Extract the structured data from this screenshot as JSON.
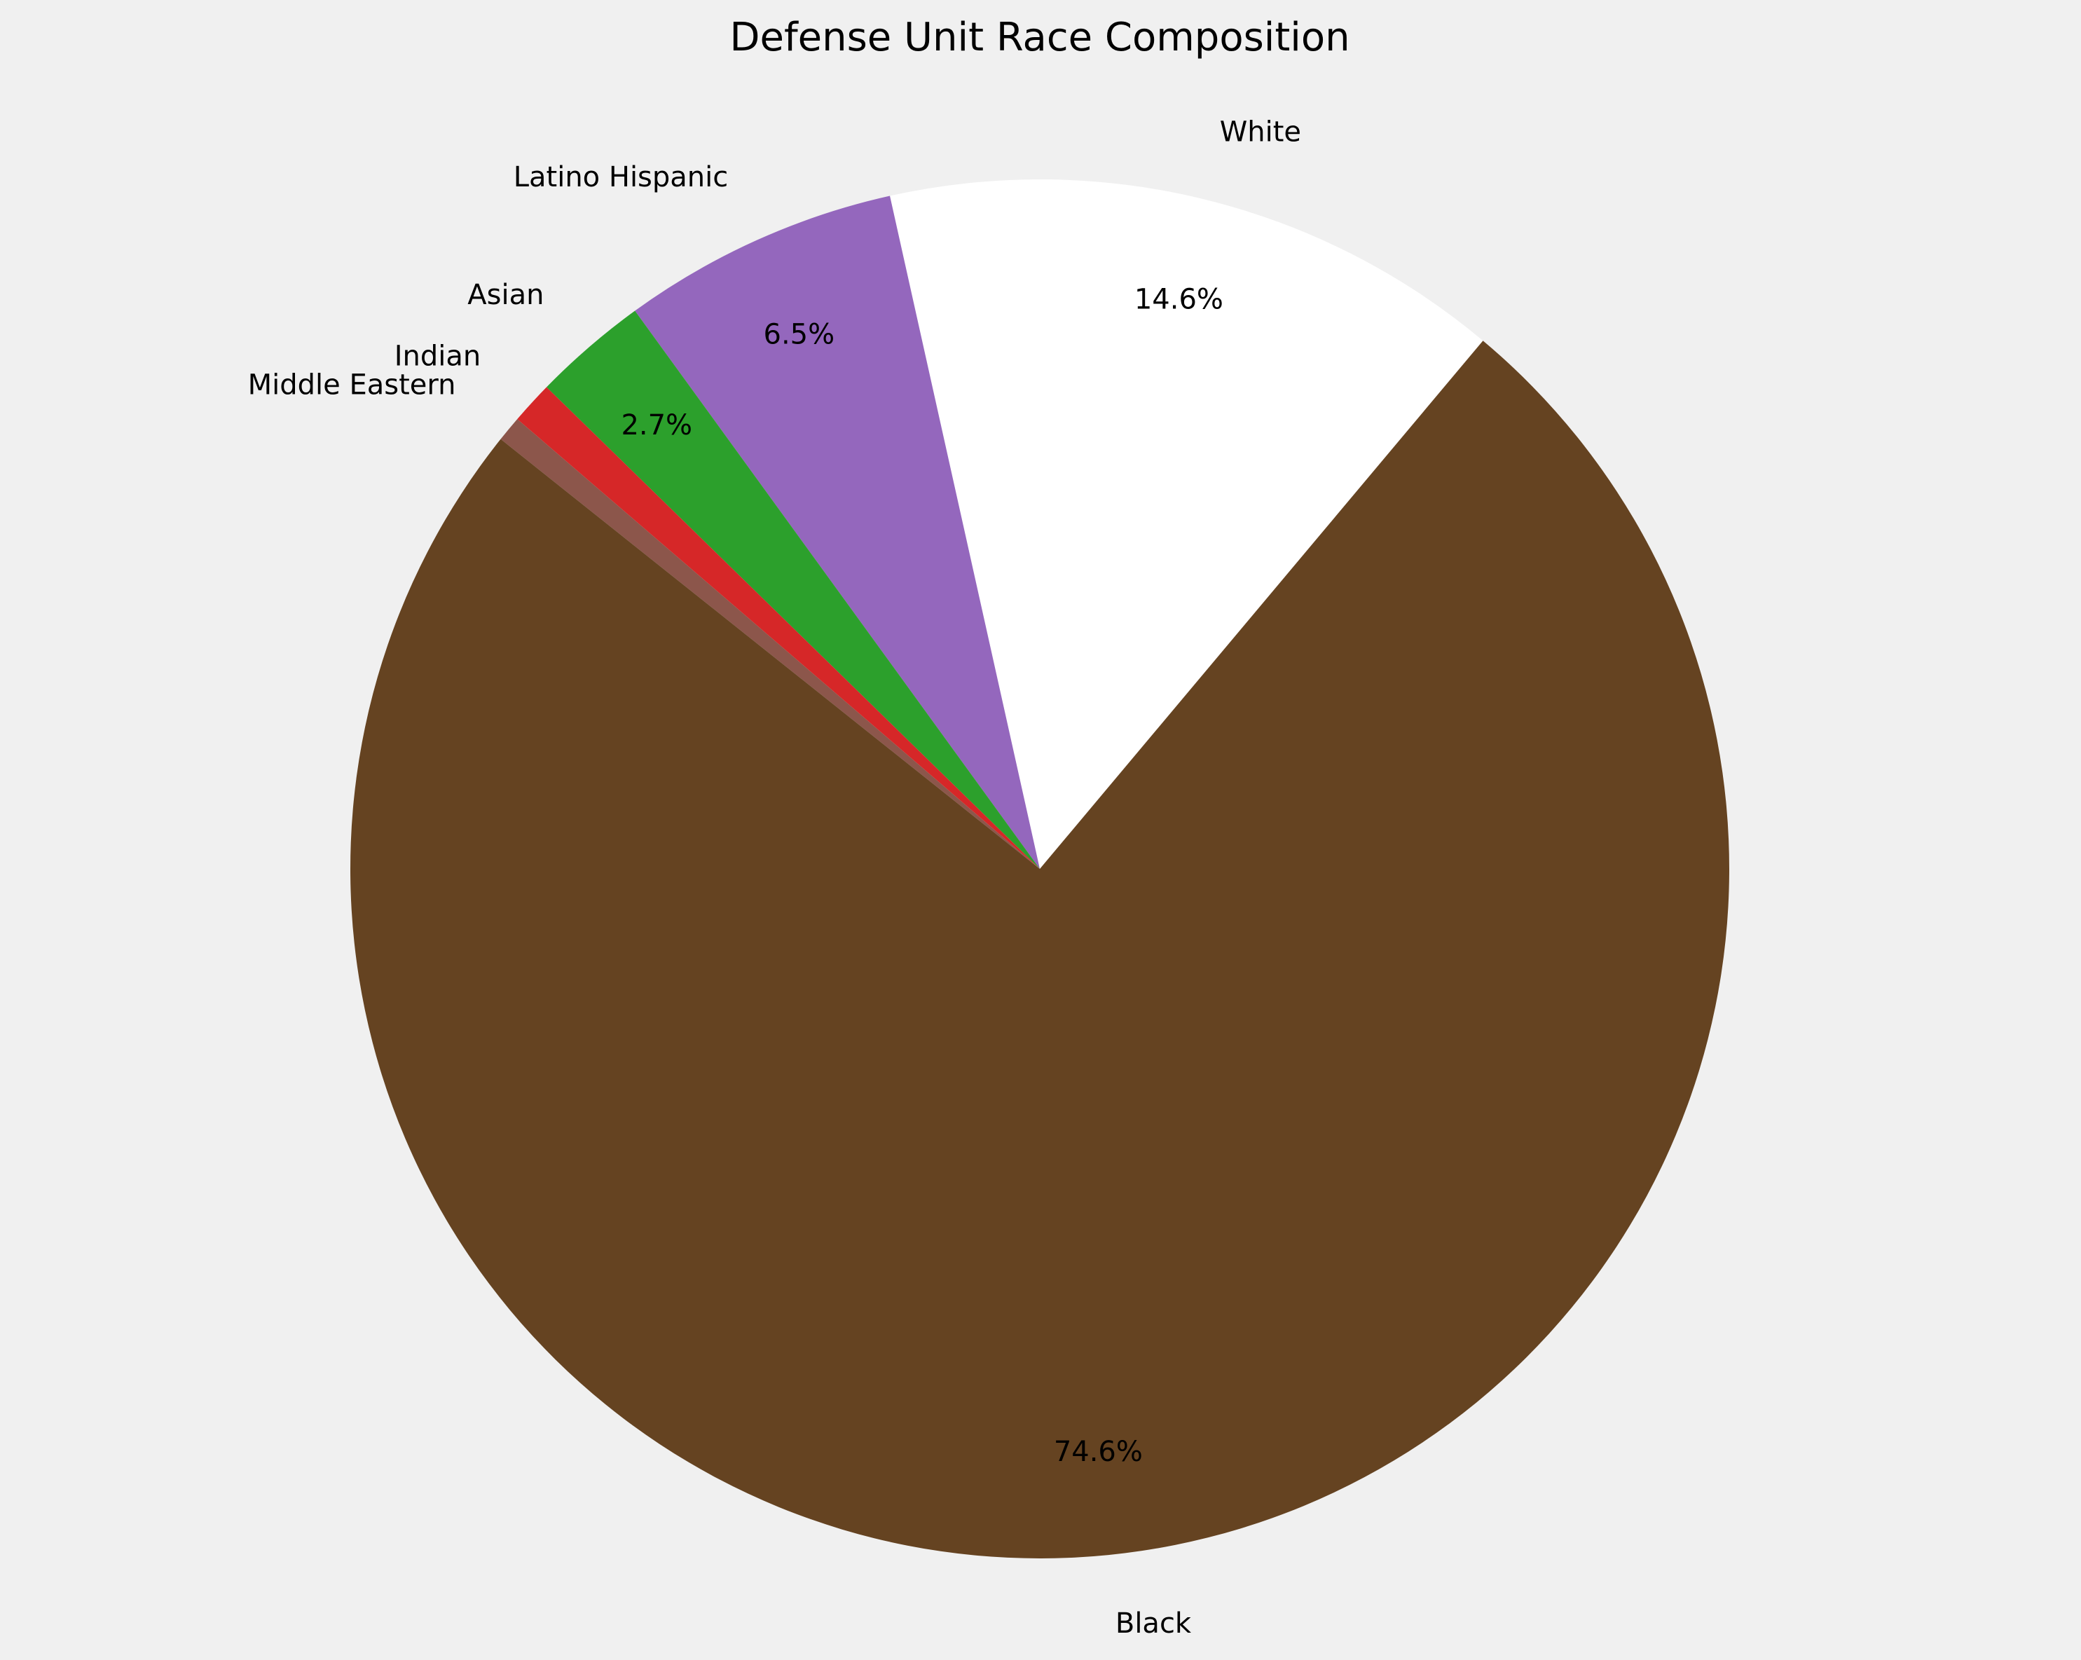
{
  "chart_data": {
    "type": "pie",
    "title": "Defense Unit Race Composition",
    "slices": [
      {
        "label": "White",
        "value": 14.6,
        "pct_label": "14.6%",
        "color": "#ffffff"
      },
      {
        "label": "Latino Hispanic",
        "value": 6.5,
        "pct_label": "6.5%",
        "color": "#9467bd"
      },
      {
        "label": "Asian",
        "value": 2.7,
        "pct_label": "2.7%",
        "color": "#2ca02c"
      },
      {
        "label": "Indian",
        "value": 1.0,
        "pct_label": "",
        "color": "#d62728"
      },
      {
        "label": "Middle Eastern",
        "value": 0.6,
        "pct_label": "",
        "color": "#8c564b"
      },
      {
        "label": "Black",
        "value": 74.6,
        "pct_label": "74.6%",
        "color": "#654321"
      }
    ],
    "legend": "none",
    "background": "#f0f0f0"
  }
}
